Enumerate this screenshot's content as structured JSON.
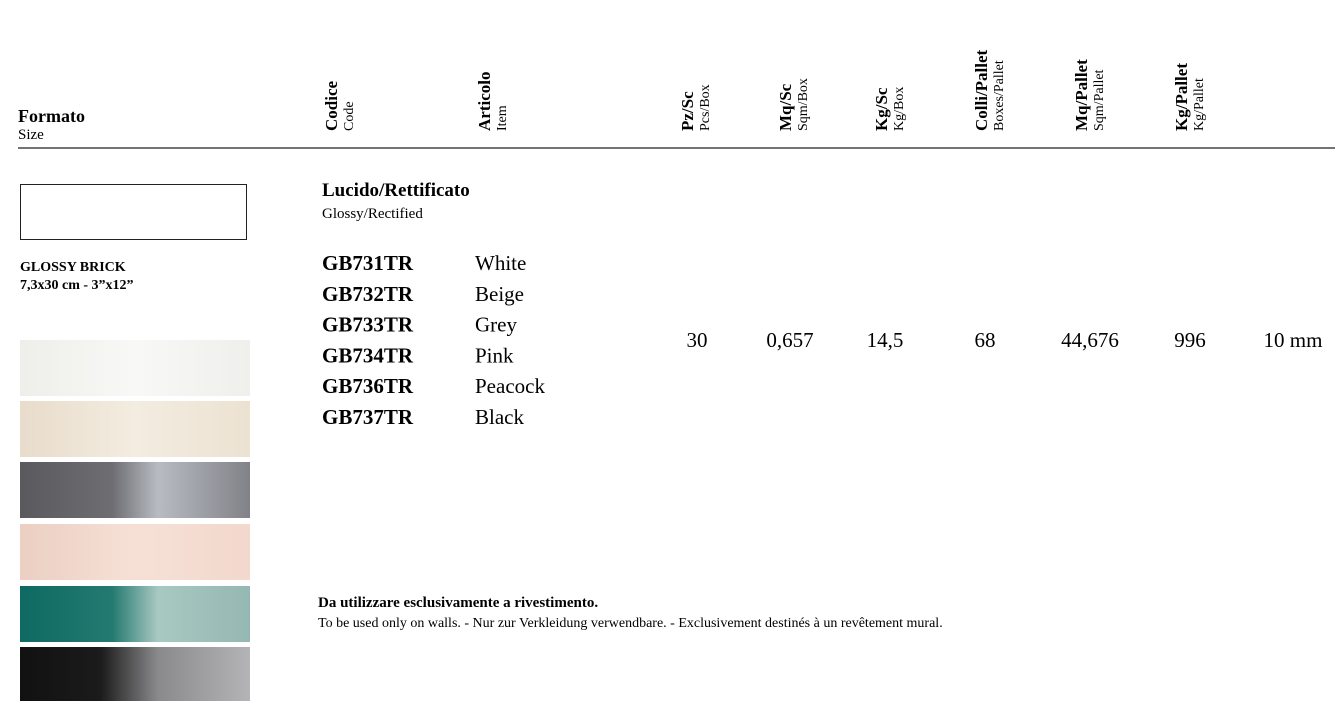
{
  "header": {
    "first": {
      "title": "Formato",
      "subtitle": "Size"
    },
    "columns": [
      {
        "title": "Codice",
        "subtitle": "Code"
      },
      {
        "title": "Articolo",
        "subtitle": "Item"
      },
      {
        "title": "Pz/Sc",
        "subtitle": "Pcs/Box"
      },
      {
        "title": "Mq/Sc",
        "subtitle": "Sqm/Box"
      },
      {
        "title": "Kg/Sc",
        "subtitle": "Kg/Box"
      },
      {
        "title": "Colli/Pallet",
        "subtitle": "Boxes/Pallet"
      },
      {
        "title": "Mq/Pallet",
        "subtitle": "Sqm/Pallet"
      },
      {
        "title": "Kg/Pallet",
        "subtitle": "Kg/Pallet"
      }
    ]
  },
  "product": {
    "name": "GLOSSY BRICK",
    "size": "7,3x30 cm - 3”x12”"
  },
  "section": {
    "title": "Lucido/Rettificato",
    "subtitle": "Glossy/Rectified"
  },
  "items": [
    {
      "code": "GB731TR",
      "name": "White"
    },
    {
      "code": "GB732TR",
      "name": "Beige"
    },
    {
      "code": "GB733TR",
      "name": "Grey"
    },
    {
      "code": "GB734TR",
      "name": "Pink"
    },
    {
      "code": "GB736TR",
      "name": "Peacock"
    },
    {
      "code": "GB737TR",
      "name": "Black"
    }
  ],
  "values": [
    "30",
    "0,657",
    "14,5",
    "68",
    "44,676",
    "996",
    "10 mm"
  ],
  "note": {
    "title": "Da utilizzare esclusivamente a rivestimento.",
    "text": "To be used only on walls. - Nur zur Verkleidung verwendbare. - Exclusivement destinés à un revêtement mural."
  }
}
